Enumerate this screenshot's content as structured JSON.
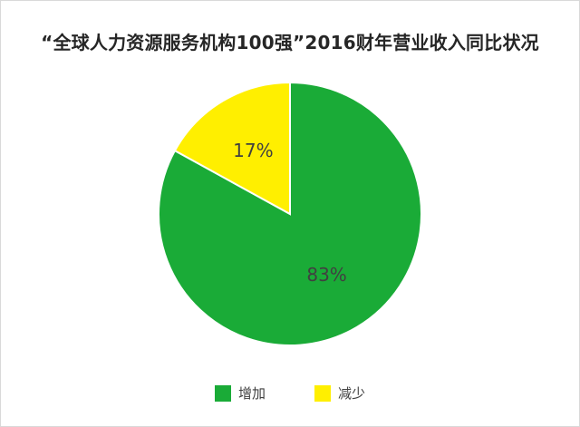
{
  "chart_data": {
    "type": "pie",
    "title": "“全球人力资源服务机构100强”2016财年营业收入同比状况",
    "start_angle_deg": 0,
    "direction": "clockwise",
    "slices": [
      {
        "label": "增加",
        "value": 83,
        "display": "83%",
        "color": "#1aab37"
      },
      {
        "label": "减少",
        "value": 17,
        "display": "17%",
        "color": "#ffef00"
      }
    ],
    "legend": {
      "position": "bottom"
    }
  }
}
